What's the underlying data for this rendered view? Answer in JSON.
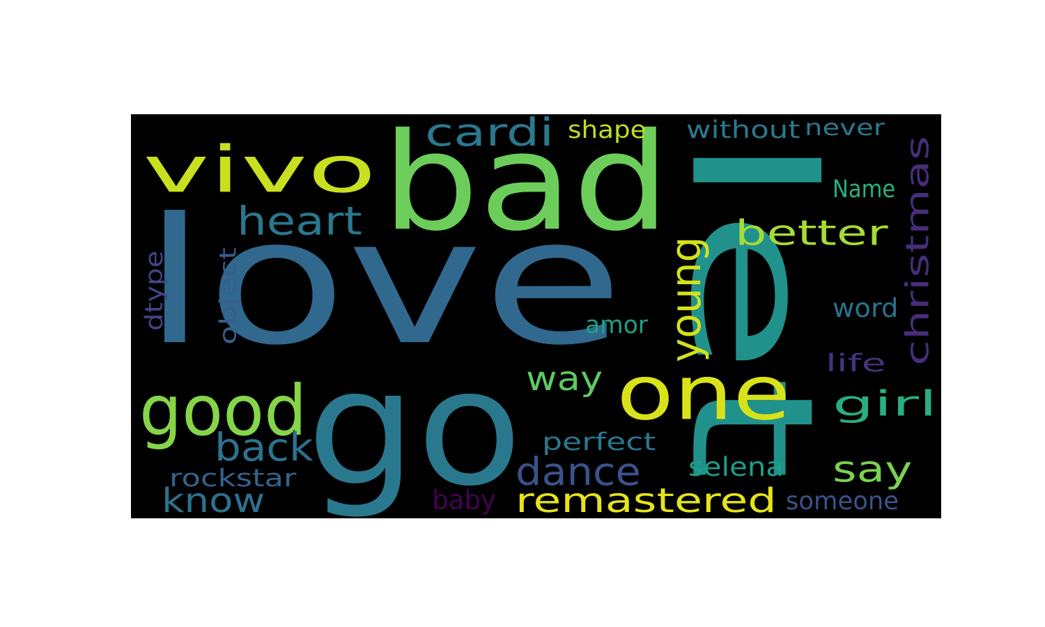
{
  "figure": {
    "background_color": "#000000",
    "page_color": "#ffffff"
  },
  "words": [
    {
      "id": "love",
      "text": "love",
      "color": "#31688e"
    },
    {
      "id": "let",
      "text": "let",
      "color": "#21918c"
    },
    {
      "id": "bad",
      "text": "bad",
      "color": "#6ccd5a"
    },
    {
      "id": "go",
      "text": "go",
      "color": "#2a788e"
    },
    {
      "id": "vivo",
      "text": "vivo",
      "color": "#c8e020"
    },
    {
      "id": "one",
      "text": "one",
      "color": "#d8e219"
    },
    {
      "id": "good",
      "text": "good",
      "color": "#86d549"
    },
    {
      "id": "cardi",
      "text": "cardi",
      "color": "#2a788e"
    },
    {
      "id": "heart",
      "text": "heart",
      "color": "#2a788e"
    },
    {
      "id": "better",
      "text": "better",
      "color": "#a5db36"
    },
    {
      "id": "christmas",
      "text": "christmas",
      "color": "#472d7b"
    },
    {
      "id": "young",
      "text": "young",
      "color": "#d2e21b"
    },
    {
      "id": "remastered",
      "text": "remastered",
      "color": "#e5e419"
    },
    {
      "id": "girl",
      "text": "girl",
      "color": "#29af7f"
    },
    {
      "id": "say",
      "text": "say",
      "color": "#7ad151"
    },
    {
      "id": "dance",
      "text": "dance",
      "color": "#3b528b"
    },
    {
      "id": "back",
      "text": "back",
      "color": "#2c728e"
    },
    {
      "id": "know",
      "text": "know",
      "color": "#2c728e"
    },
    {
      "id": "way",
      "text": "way",
      "color": "#5ec962"
    },
    {
      "id": "shape",
      "text": "shape",
      "color": "#bddf26"
    },
    {
      "id": "without",
      "text": "without",
      "color": "#2a788e"
    },
    {
      "id": "never",
      "text": "never",
      "color": "#2a788e"
    },
    {
      "id": "name",
      "text": "Name",
      "color": "#29af7f"
    },
    {
      "id": "word",
      "text": "word",
      "color": "#2c728e"
    },
    {
      "id": "life",
      "text": "life",
      "color": "#46337e"
    },
    {
      "id": "amor",
      "text": "amor",
      "color": "#1fa088"
    },
    {
      "id": "object",
      "text": "object",
      "color": "#355f8d"
    },
    {
      "id": "dtype",
      "text": "dtype",
      "color": "#414487"
    },
    {
      "id": "perfect",
      "text": "perfect",
      "color": "#2a788e"
    },
    {
      "id": "selena",
      "text": "selena",
      "color": "#1f9e89"
    },
    {
      "id": "rockstar",
      "text": "rockstar",
      "color": "#33638d"
    },
    {
      "id": "baby",
      "text": "baby",
      "color": "#440154"
    },
    {
      "id": "someone",
      "text": "someone",
      "color": "#3b528b"
    }
  ]
}
